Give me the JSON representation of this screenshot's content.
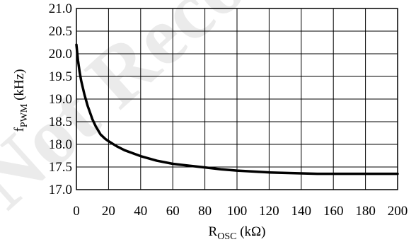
{
  "watermark": "Not Recommended for New Designs",
  "chart_data": {
    "type": "line",
    "xlabel_main": "R",
    "xlabel_sub": "OSC",
    "xlabel_unit": " (kΩ)",
    "ylabel_main": "f",
    "ylabel_sub": "PWM",
    "ylabel_unit": " (kHz)",
    "xlim": [
      0,
      200
    ],
    "ylim": [
      17.0,
      21.0
    ],
    "x_ticks": [
      0,
      20,
      40,
      60,
      80,
      100,
      120,
      140,
      160,
      180,
      200
    ],
    "x_tick_labels": [
      "0",
      "20",
      "40",
      "60",
      "80",
      "100",
      "120",
      "140",
      "160",
      "180",
      "200"
    ],
    "y_ticks": [
      17.0,
      17.5,
      18.0,
      18.5,
      19.0,
      19.5,
      20.0,
      20.5,
      21.0
    ],
    "y_tick_labels": [
      "17.0",
      "17.5",
      "18.0",
      "18.5",
      "19.0",
      "19.5",
      "20.0",
      "20.5",
      "21.0"
    ],
    "grid": true,
    "series": [
      {
        "color": "#000000",
        "x": [
          0,
          1,
          2,
          3,
          5,
          7,
          10,
          12,
          15,
          18,
          20,
          25,
          30,
          40,
          50,
          60,
          70,
          80,
          90,
          100,
          110,
          120,
          130,
          140,
          150,
          160,
          170,
          180,
          190,
          200
        ],
        "y": [
          20.2,
          19.85,
          19.6,
          19.4,
          19.1,
          18.85,
          18.55,
          18.4,
          18.22,
          18.12,
          18.07,
          17.96,
          17.87,
          17.74,
          17.64,
          17.57,
          17.53,
          17.49,
          17.45,
          17.42,
          17.4,
          17.38,
          17.37,
          17.36,
          17.35,
          17.35,
          17.35,
          17.35,
          17.35,
          17.35
        ]
      }
    ]
  }
}
